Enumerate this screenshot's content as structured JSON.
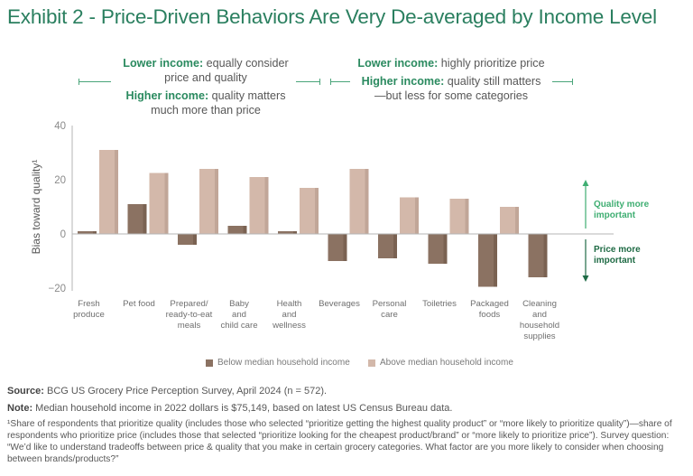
{
  "title": "Exhibit 2 - Price-Driven Behaviors Are Very De-averaged by Income Level",
  "annotations": {
    "left": {
      "lower_label": "Lower income:",
      "lower_text": " equally consider price and quality",
      "higher_label": "Higher income:",
      "higher_text": " quality matters much more than price"
    },
    "right": {
      "lower_label": "Lower income:",
      "lower_text": " highly prioritize price",
      "higher_label": "Higher income:",
      "higher_text": " quality still matters—but less for some categories"
    }
  },
  "side_labels": {
    "up": [
      "Quality more",
      "important"
    ],
    "down": [
      "Price more",
      "important"
    ],
    "up_color": "#3fae72",
    "down_color": "#1f6b45"
  },
  "colors": {
    "below": "#8b7262",
    "below_shade": "#7a6252",
    "above": "#d3b8aa",
    "above_shade": "#c1a698",
    "axis": "#b5b5b5",
    "title": "#2a7f5f"
  },
  "chart_data": {
    "type": "bar",
    "title": "Exhibit 2 - Price-Driven Behaviors Are Very De-averaged by Income Level",
    "xlabel": "",
    "ylabel": "Bias toward quality¹",
    "ylim": [
      -20,
      40
    ],
    "yticks": [
      40,
      20,
      0,
      -20
    ],
    "ytick_labels": [
      "40",
      "20",
      "0",
      "−20"
    ],
    "grid": false,
    "legend_position": "bottom",
    "categories": [
      [
        "Fresh",
        "produce"
      ],
      [
        "Pet food"
      ],
      [
        "Prepared/",
        "ready-to-eat",
        "meals"
      ],
      [
        "Baby",
        "and",
        "child care"
      ],
      [
        "Health",
        "and",
        "wellness"
      ],
      [
        "Beverages"
      ],
      [
        "Personal",
        "care"
      ],
      [
        "Toiletries"
      ],
      [
        "Packaged",
        "foods"
      ],
      [
        "Cleaning",
        "and",
        "household",
        "supplies"
      ]
    ],
    "series": [
      {
        "name": "Below median household income",
        "values": [
          1,
          11,
          -4,
          3,
          1,
          -10,
          -9,
          -11,
          -19.5,
          -16
        ]
      },
      {
        "name": "Above median household income",
        "values": [
          31,
          22.5,
          24,
          21,
          17,
          24,
          13.5,
          13,
          10,
          0
        ]
      }
    ]
  },
  "source_label": "Source:",
  "source_text": " BCG US Grocery Price Perception Survey, April 2024 (n = 572).",
  "note_label": "Note:",
  "note_text": " Median household income in 2022 dollars is $75,149, based on latest US Census Bureau data.",
  "footnote": "¹Share of respondents that prioritize quality (includes those who selected “prioritize getting the highest quality product” or “more likely to prioritize quality”)—share of respondents who prioritize price (includes those that selected “prioritize looking for the cheapest product/brand” or “more likely to prioritize price”). Survey question: “We’d like to understand tradeoffs between price & quality that you make in certain grocery categories. What factor are you more likely to consider when choosing between brands/products?”"
}
